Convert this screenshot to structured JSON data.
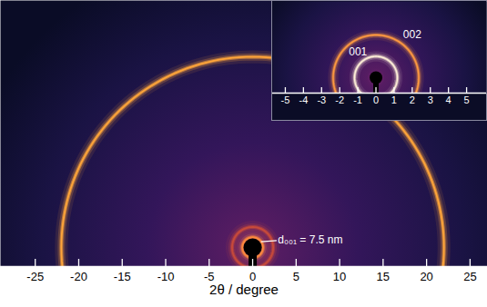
{
  "chart_data": [
    {
      "type": "rings",
      "xlabel": "2θ / degree",
      "xlim": [
        -29,
        27
      ],
      "ylim": [
        -2.2,
        28.5
      ],
      "xticks": [
        -25,
        -20,
        -15,
        -10,
        -5,
        0,
        5,
        10,
        15,
        20,
        25
      ],
      "tick_labels": "x",
      "rings": [
        {
          "two_theta": 1.18,
          "color": "#ff8a3c"
        },
        {
          "two_theta": 2.36,
          "color": "#c84a3a"
        },
        {
          "two_theta": 22,
          "color": "#ffa53a"
        }
      ],
      "annotations": [
        {
          "text": "d₀₀₁ = 7.5 nm",
          "two_theta": 1.18
        }
      ]
    },
    {
      "type": "rings",
      "xlim": [
        -5.7,
        6.1
      ],
      "ylim": [
        -0.85,
        4.22
      ],
      "xticks": [
        -5,
        -4,
        -3,
        -2,
        -1,
        0,
        1,
        2,
        3,
        4,
        5
      ],
      "tick_labels": "x",
      "rings": [
        {
          "two_theta": 1.18,
          "label": "001",
          "color": "#fff0d8"
        },
        {
          "two_theta": 2.36,
          "label": "002",
          "color": "#ff9a40"
        }
      ]
    }
  ]
}
